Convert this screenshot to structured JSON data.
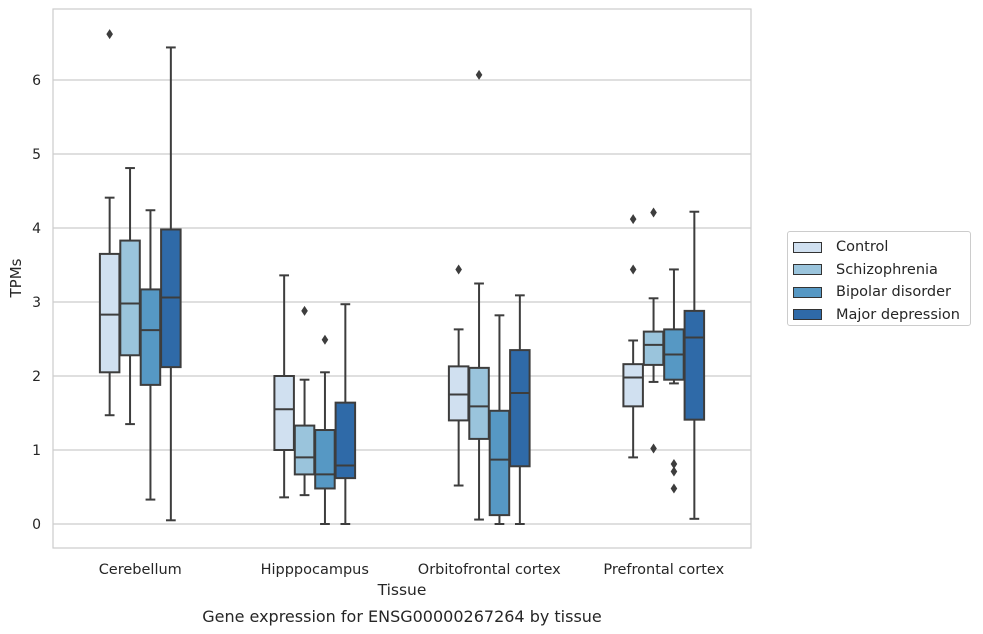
{
  "chart_data": {
    "type": "boxplot",
    "title": "Gene expression for ENSG00000267264 by tissue",
    "xlabel": "Tissue",
    "ylabel": "TPMs",
    "ylim": [
      -0.32,
      6.95
    ],
    "yticks": [
      0,
      1,
      2,
      3,
      4,
      5,
      6
    ],
    "grid": true,
    "legend_position": "right",
    "categories": [
      "Cerebellum",
      "Hipppocampus",
      "Orbitofrontal cortex",
      "Prefrontal cortex"
    ],
    "series": [
      {
        "name": "Control",
        "color": "#d0e0f0",
        "boxes": [
          {
            "whislo": 1.47,
            "q1": 2.05,
            "med": 2.83,
            "q3": 3.65,
            "whishi": 4.41,
            "fliers": [
              6.62
            ]
          },
          {
            "whislo": 0.36,
            "q1": 1.0,
            "med": 1.55,
            "q3": 2.0,
            "whishi": 3.36,
            "fliers": []
          },
          {
            "whislo": 0.52,
            "q1": 1.4,
            "med": 1.75,
            "q3": 2.13,
            "whishi": 2.63,
            "fliers": [
              3.44
            ]
          },
          {
            "whislo": 0.9,
            "q1": 1.59,
            "med": 1.98,
            "q3": 2.16,
            "whishi": 2.48,
            "fliers": [
              3.44,
              4.12
            ]
          }
        ]
      },
      {
        "name": "Schizophrenia",
        "color": "#9ac4dc",
        "boxes": [
          {
            "whislo": 1.35,
            "q1": 2.28,
            "med": 2.98,
            "q3": 3.83,
            "whishi": 4.81,
            "fliers": []
          },
          {
            "whislo": 0.39,
            "q1": 0.67,
            "med": 0.9,
            "q3": 1.33,
            "whishi": 1.95,
            "fliers": [
              2.88
            ]
          },
          {
            "whislo": 0.06,
            "q1": 1.15,
            "med": 1.59,
            "q3": 2.11,
            "whishi": 3.25,
            "fliers": [
              6.07
            ]
          },
          {
            "whislo": 1.92,
            "q1": 2.15,
            "med": 2.42,
            "q3": 2.6,
            "whishi": 3.05,
            "fliers": [
              1.02,
              4.21
            ]
          }
        ]
      },
      {
        "name": "Bipolar disorder",
        "color": "#5698c4",
        "boxes": [
          {
            "whislo": 0.33,
            "q1": 1.88,
            "med": 2.62,
            "q3": 3.17,
            "whishi": 4.24,
            "fliers": []
          },
          {
            "whislo": 0.0,
            "q1": 0.48,
            "med": 0.67,
            "q3": 1.27,
            "whishi": 2.05,
            "fliers": [
              2.49
            ]
          },
          {
            "whislo": 0.0,
            "q1": 0.12,
            "med": 0.87,
            "q3": 1.53,
            "whishi": 2.82,
            "fliers": []
          },
          {
            "whislo": 1.9,
            "q1": 1.95,
            "med": 2.29,
            "q3": 2.63,
            "whishi": 3.44,
            "fliers": [
              0.48,
              0.71,
              0.81
            ]
          }
        ]
      },
      {
        "name": "Major depression",
        "color": "#2f6aa8",
        "boxes": [
          {
            "whislo": 0.05,
            "q1": 2.12,
            "med": 3.06,
            "q3": 3.98,
            "whishi": 6.44,
            "fliers": []
          },
          {
            "whislo": 0.0,
            "q1": 0.62,
            "med": 0.79,
            "q3": 1.64,
            "whishi": 2.97,
            "fliers": []
          },
          {
            "whislo": 0.0,
            "q1": 0.78,
            "med": 1.77,
            "q3": 2.35,
            "whishi": 3.09,
            "fliers": []
          },
          {
            "whislo": 0.07,
            "q1": 1.41,
            "med": 2.52,
            "q3": 2.88,
            "whishi": 4.22,
            "fliers": []
          }
        ]
      }
    ]
  }
}
